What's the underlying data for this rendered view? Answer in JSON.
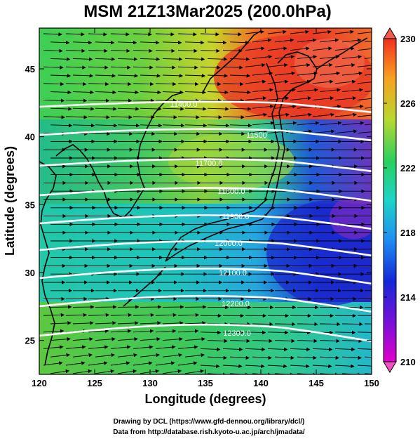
{
  "title": "MSM 21Z13Mar2025 (200.0hPa)",
  "x_axis": {
    "label": "Longitude (degrees)",
    "range": [
      120,
      150
    ],
    "ticks": [
      "120",
      "125",
      "130",
      "135",
      "140",
      "145",
      "150"
    ]
  },
  "y_axis": {
    "label": "Latitude  (degrees)",
    "range": [
      22.5,
      48
    ],
    "ticks": [
      "25",
      "30",
      "35",
      "40",
      "45"
    ]
  },
  "colorbar": {
    "range": [
      210,
      230
    ],
    "ticks": [
      "230",
      "226",
      "222",
      "218",
      "214",
      "210"
    ]
  },
  "contours": [
    {
      "label": "11400.0"
    },
    {
      "label": "11500"
    },
    {
      "label": "11700.0"
    },
    {
      "label": "11800.0"
    },
    {
      "label": "11900.0"
    },
    {
      "label": "12000.0"
    },
    {
      "label": "12100.0"
    },
    {
      "label": "12200.0"
    },
    {
      "label": "12300.0"
    }
  ],
  "credits": {
    "line1": "Drawing by DCL (https://www.gfd-dennou.org/library/dcl/)",
    "line2": "Data from http://database.rish.kyoto-u.ac.jp/arch/jmadata/"
  }
}
